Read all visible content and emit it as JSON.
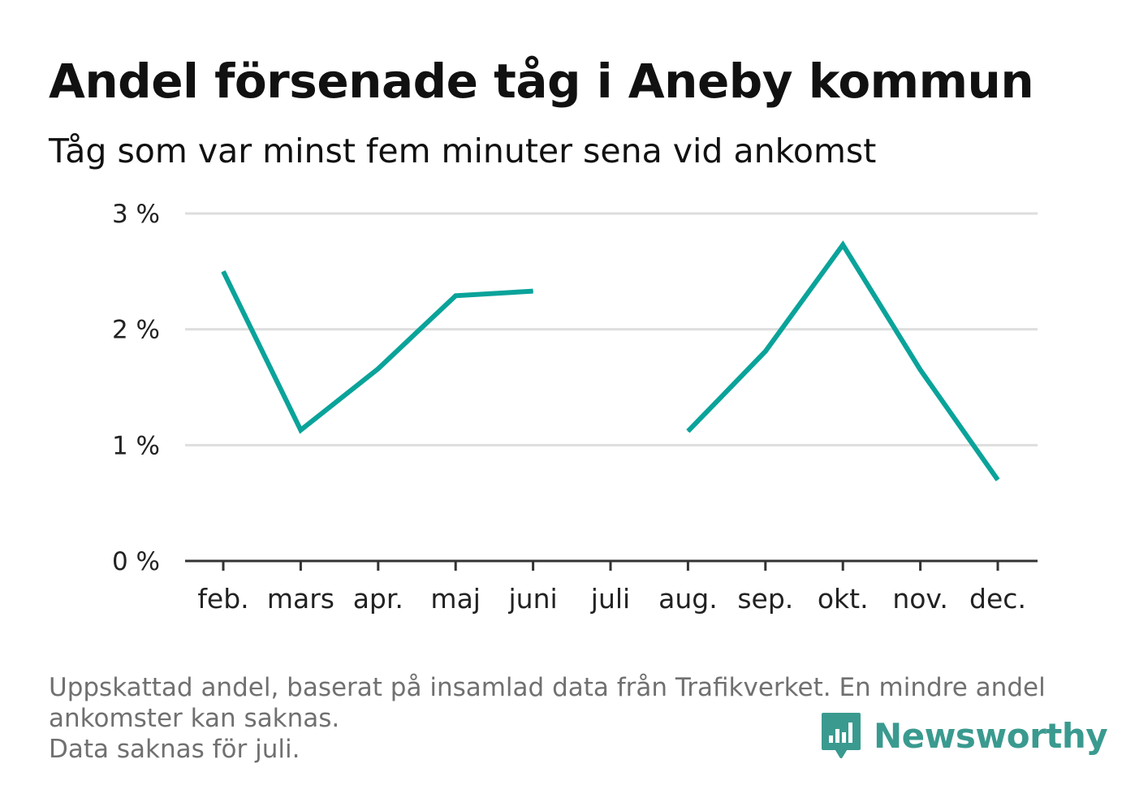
{
  "header": {
    "title": "Andel försenade tåg i Aneby kommun",
    "subtitle": "Tåg som var minst fem minuter sena vid ankomst"
  },
  "chart_data": {
    "type": "line",
    "title": "Andel försenade tåg i Aneby kommun",
    "subtitle": "Tåg som var minst fem minuter sena vid ankomst",
    "categories": [
      "feb.",
      "mars",
      "apr.",
      "maj",
      "juni",
      "juli",
      "aug.",
      "sep.",
      "okt.",
      "nov.",
      "dec."
    ],
    "series": [
      {
        "values": [
          2.5,
          1.13,
          1.66,
          2.29,
          2.33,
          null,
          1.12,
          1.81,
          2.73,
          1.65,
          0.7
        ]
      }
    ],
    "ylim": [
      0,
      3
    ],
    "yticks": [
      0,
      1,
      2,
      3
    ],
    "ytick_labels": [
      "0 %",
      "1 %",
      "2 %",
      "3 %"
    ],
    "grid": true,
    "legend": "none",
    "line_color": "#0aa39a"
  },
  "footnote": {
    "line1": "Uppskattad andel, baserat på insamlad data från Trafikverket. En mindre andel",
    "line2": "ankomster kan saknas.",
    "line3": "Data saknas för juli."
  },
  "brand": {
    "name": "Newsworthy",
    "icon": "newsworthy-logo-icon",
    "color": "#3a9a8f"
  }
}
